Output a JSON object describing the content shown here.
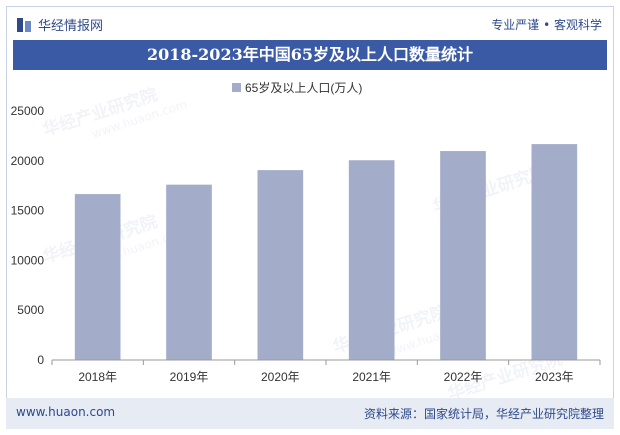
{
  "header": {
    "brand_name": "华经情报网",
    "slogan": "专业严谨 • 客观科学",
    "logo_icon": "huajing-logo-icon"
  },
  "title": "2018-2023年中国65岁及以上人口数量统计",
  "watermark": {
    "brand": "华经产业研究院",
    "url": "www.huaon.com"
  },
  "chart_data": {
    "type": "bar",
    "categories": [
      "2018年",
      "2019年",
      "2020年",
      "2021年",
      "2022年",
      "2023年"
    ],
    "series": [
      {
        "name": "65岁及以上人口(万人)",
        "values": [
          16658,
          17603,
          19064,
          20056,
          20978,
          21676
        ],
        "color": "#a3acc8"
      }
    ],
    "ylim": [
      0,
      25000
    ],
    "yticks": [
      0,
      5000,
      10000,
      15000,
      20000,
      25000
    ],
    "legend": "top-center",
    "grid": false
  },
  "footer": {
    "url": "www.huaon.com",
    "source": "资料来源：国家统计局，华经产业研究院整理"
  }
}
